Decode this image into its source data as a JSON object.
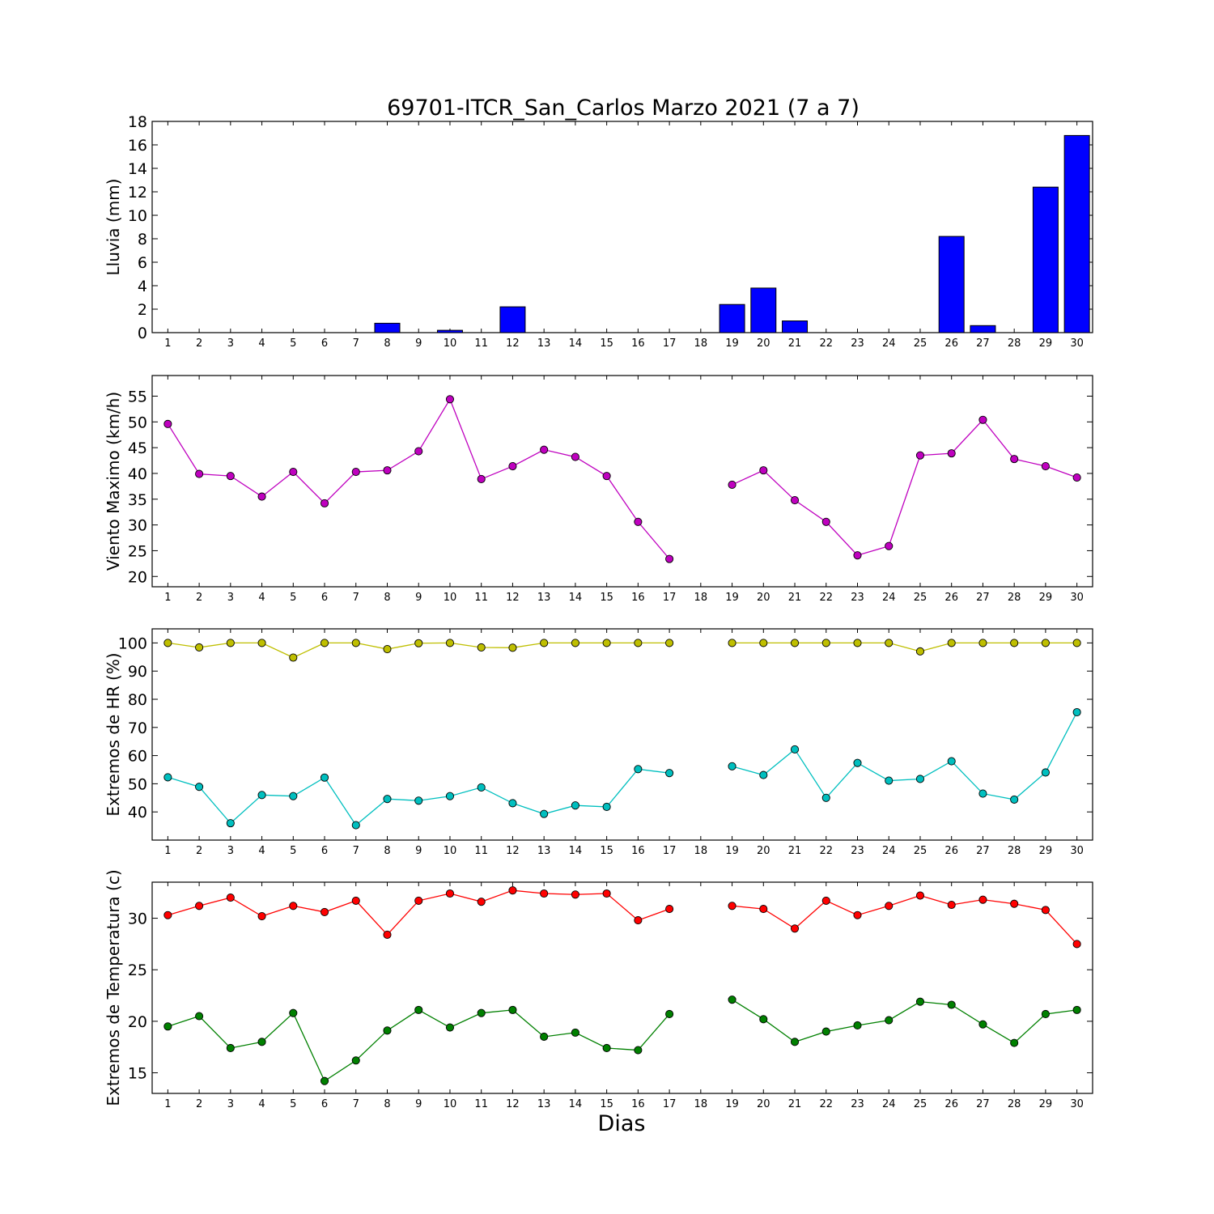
{
  "chart_data": [
    {
      "type": "bar",
      "title": "69701-ITCR_San_Carlos Marzo 2021  (7 a 7)",
      "ylabel": "Lluvia (mm)",
      "xlabel": "",
      "ylim": [
        0,
        18
      ],
      "yticks": [
        0,
        2,
        4,
        6,
        8,
        10,
        12,
        14,
        16,
        18
      ],
      "categories": [
        "1",
        "2",
        "3",
        "4",
        "5",
        "6",
        "7",
        "8",
        "9",
        "10",
        "11",
        "12",
        "13",
        "14",
        "15",
        "16",
        "17",
        "18",
        "19",
        "20",
        "21",
        "22",
        "23",
        "24",
        "25",
        "26",
        "27",
        "28",
        "29",
        "30"
      ],
      "series": [
        {
          "color": "#0000ff",
          "values": [
            0,
            0,
            0,
            0,
            0,
            0,
            0,
            0.8,
            0,
            0.2,
            0,
            2.2,
            0,
            0,
            0,
            0,
            0,
            0,
            2.4,
            3.8,
            1.0,
            0,
            0,
            0,
            0,
            8.2,
            0.6,
            0,
            12.4,
            16.8
          ]
        }
      ]
    },
    {
      "type": "line",
      "ylabel": "Viento Maximo (km/h)",
      "xlabel": "",
      "ylim": [
        18,
        59
      ],
      "yticks": [
        20,
        25,
        30,
        35,
        40,
        45,
        50,
        55
      ],
      "categories": [
        "1",
        "2",
        "3",
        "4",
        "5",
        "6",
        "7",
        "8",
        "9",
        "10",
        "11",
        "12",
        "13",
        "14",
        "15",
        "16",
        "17",
        "18",
        "19",
        "20",
        "21",
        "22",
        "23",
        "24",
        "25",
        "26",
        "27",
        "28",
        "29",
        "30"
      ],
      "series": [
        {
          "color": "#bf00bf",
          "values": [
            49.6,
            39.9,
            39.5,
            35.5,
            40.3,
            34.2,
            40.3,
            40.6,
            44.3,
            54.4,
            38.9,
            41.4,
            44.6,
            43.2,
            39.5,
            30.6,
            23.4,
            null,
            37.8,
            40.6,
            34.8,
            30.6,
            24.1,
            25.9,
            43.5,
            43.9,
            50.4,
            42.8,
            41.4,
            39.2
          ]
        }
      ]
    },
    {
      "type": "line",
      "ylabel": "Extremos de HR (%)",
      "xlabel": "",
      "ylim": [
        30,
        105
      ],
      "yticks": [
        40,
        50,
        60,
        70,
        80,
        90,
        100
      ],
      "categories": [
        "1",
        "2",
        "3",
        "4",
        "5",
        "6",
        "7",
        "8",
        "9",
        "10",
        "11",
        "12",
        "13",
        "14",
        "15",
        "16",
        "17",
        "18",
        "19",
        "20",
        "21",
        "22",
        "23",
        "24",
        "25",
        "26",
        "27",
        "28",
        "29",
        "30"
      ],
      "series": [
        {
          "color": "#bfbf00",
          "values": [
            100,
            98.4,
            100,
            100,
            94.8,
            100,
            100,
            97.8,
            99.9,
            100,
            98.4,
            98.3,
            100,
            100,
            100,
            100,
            100,
            null,
            100,
            100,
            100,
            100,
            100,
            100,
            97,
            100,
            100,
            100,
            100,
            100
          ]
        },
        {
          "color": "#00bfbf",
          "values": [
            52.3,
            48.9,
            36,
            46,
            45.6,
            52.2,
            35.3,
            44.6,
            44,
            45.6,
            48.7,
            43.1,
            39.3,
            42.3,
            41.8,
            55.2,
            53.8,
            null,
            56.2,
            53.1,
            62.2,
            45,
            57.4,
            51.1,
            51.7,
            58,
            46.5,
            44.4,
            54,
            75.4
          ]
        }
      ]
    },
    {
      "type": "line",
      "ylabel": "Extremos de Temperatura (c)",
      "xlabel": "Dias",
      "ylim": [
        13,
        33.5
      ],
      "yticks": [
        15,
        20,
        25,
        30
      ],
      "categories": [
        "1",
        "2",
        "3",
        "4",
        "5",
        "6",
        "7",
        "8",
        "9",
        "10",
        "11",
        "12",
        "13",
        "14",
        "15",
        "16",
        "17",
        "18",
        "19",
        "20",
        "21",
        "22",
        "23",
        "24",
        "25",
        "26",
        "27",
        "28",
        "29",
        "30"
      ],
      "series": [
        {
          "color": "#ff0000",
          "values": [
            30.3,
            31.2,
            32,
            30.2,
            31.2,
            30.6,
            31.7,
            28.4,
            31.7,
            32.4,
            31.6,
            32.7,
            32.4,
            32.3,
            32.4,
            29.8,
            30.9,
            null,
            31.2,
            30.9,
            29,
            31.7,
            30.3,
            31.2,
            32.2,
            31.3,
            31.8,
            31.4,
            30.8,
            27.5
          ]
        },
        {
          "color": "#008000",
          "values": [
            19.5,
            20.5,
            17.4,
            18,
            20.8,
            14.2,
            16.2,
            19.1,
            21.1,
            19.4,
            20.8,
            21.1,
            18.5,
            18.9,
            17.4,
            17.2,
            20.7,
            null,
            22.1,
            20.2,
            18,
            19,
            19.6,
            20.1,
            21.9,
            21.6,
            19.7,
            17.9,
            20.7,
            21.1
          ]
        }
      ]
    }
  ]
}
